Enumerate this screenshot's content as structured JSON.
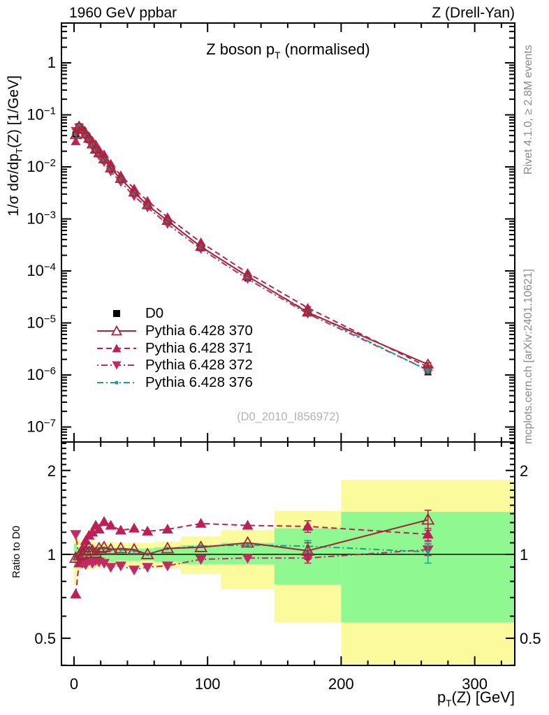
{
  "header": {
    "left": "1960 GeV ppbar",
    "right": "Z (Drell-Yan)"
  },
  "titles": {
    "main_pre": "Z boson p",
    "main_sub": "T",
    "main_post": " (normalised)",
    "y_top_pre": "1/σ dσ/dp",
    "y_top_sub": "T",
    "y_top_post": "(Z) [1/GeV]",
    "ratio_y": "Ratio to D0",
    "x_pre": "p",
    "x_sub": "T",
    "x_post": "(Z) [GeV]"
  },
  "notes": {
    "rivet": "Rivet 4.1.0, ≥ 2.8M events",
    "mcplots": "mcplots.cern.ch [arXiv:2401.10621]",
    "watermark": "(D0_2010_I856972)"
  },
  "chart_data": {
    "type": "line",
    "title": "Z boson p_T (normalised)",
    "xlabel": "p_T(Z) [GeV]",
    "ylabel_top": "1/sigma dsigma/dp_T(Z) [1/GeV]",
    "ylabel_bottom": "Ratio to D0",
    "axes": {
      "x": {
        "min": -9.4,
        "max": 330,
        "majors": [
          0,
          100,
          200,
          300
        ],
        "major_labels": [
          "0",
          "100",
          "200",
          "300"
        ],
        "minor_step": 20
      },
      "y_top": {
        "scale": "log",
        "log_min": -7.288,
        "log_max": 0.765,
        "decade_exponents": [
          0,
          -1,
          -2,
          -3,
          -4,
          -5,
          -6,
          -7
        ]
      },
      "y_ratio": {
        "scale": "log",
        "min": 0.3995,
        "max": 2.53,
        "majors": [
          0.5,
          1,
          2
        ],
        "major_labels": [
          "0.5",
          "1",
          "2"
        ],
        "minor_min": 0.4,
        "minor_max": 2.5,
        "minor_step": 0.1
      }
    },
    "bins": [
      [
        0,
        2.5
      ],
      [
        2.5,
        5
      ],
      [
        5,
        7.5
      ],
      [
        7.5,
        10
      ],
      [
        10,
        12.5
      ],
      [
        12.5,
        15
      ],
      [
        15,
        17.5
      ],
      [
        17.5,
        20
      ],
      [
        20,
        25
      ],
      [
        25,
        30
      ],
      [
        30,
        40
      ],
      [
        40,
        50
      ],
      [
        50,
        60
      ],
      [
        60,
        80
      ],
      [
        80,
        110
      ],
      [
        110,
        150
      ],
      [
        150,
        200
      ],
      [
        200,
        330
      ]
    ],
    "x": [
      1.25,
      3.75,
      6.25,
      8.75,
      11.25,
      13.75,
      16.25,
      18.75,
      22.5,
      27.5,
      35,
      45,
      55,
      70,
      95,
      130,
      175,
      265
    ],
    "d0": {
      "name": "D0",
      "color": "#000000",
      "marker": "square",
      "values": [
        0.0424,
        0.0602,
        0.0517,
        0.0411,
        0.033,
        0.0264,
        0.0214,
        0.0175,
        0.0133,
        0.00906,
        0.00563,
        0.0031,
        0.00184,
        0.00088,
        0.000275,
        7.2e-05,
        1.55e-05,
        1.2e-06
      ],
      "err_frac": [
        0.02,
        0.015,
        0.015,
        0.015,
        0.015,
        0.02,
        0.02,
        0.02,
        0.02,
        0.02,
        0.02,
        0.02,
        0.03,
        0.03,
        0.04,
        0.06,
        0.1,
        0.16
      ]
    },
    "series": [
      {
        "name": "Pythia 6.428 370",
        "color": "#a32638",
        "dash": "",
        "marker": "triangle-open",
        "ratio": [
          0.97,
          0.99,
          1.0,
          1.03,
          1.06,
          1.03,
          1.01,
          1.05,
          1.06,
          1.04,
          1.05,
          1.04,
          1.0,
          1.05,
          1.06,
          1.1,
          1.03,
          1.33
        ],
        "ratio_err": [
          0,
          0,
          0,
          0,
          0,
          0,
          0,
          0,
          0,
          0,
          0,
          0,
          0,
          0,
          0,
          0,
          0.07,
          0.11
        ]
      },
      {
        "name": "Pythia 6.428 371",
        "color": "#bd2057",
        "dash": "8 5",
        "marker": "triangle-up",
        "ratio": [
          0.72,
          0.93,
          1.05,
          1.12,
          1.17,
          1.2,
          1.27,
          1.23,
          1.31,
          1.27,
          1.22,
          1.24,
          1.21,
          1.23,
          1.29,
          1.27,
          1.26,
          1.18
        ],
        "ratio_err": [
          0,
          0,
          0,
          0,
          0,
          0,
          0,
          0,
          0,
          0,
          0,
          0,
          0,
          0,
          0,
          0,
          0.06,
          0.06
        ]
      },
      {
        "name": "Pythia 6.428 372",
        "color": "#c22a62",
        "dash": "2 4 9 4",
        "marker": "triangle-down",
        "ratio": [
          1.18,
          0.97,
          0.93,
          0.92,
          0.95,
          0.93,
          0.95,
          0.94,
          0.93,
          0.9,
          0.91,
          0.88,
          0.9,
          0.91,
          0.96,
          0.97,
          0.97,
          1.04
        ],
        "ratio_err": [
          0,
          0,
          0,
          0,
          0,
          0,
          0,
          0,
          0,
          0,
          0,
          0,
          0,
          0,
          0,
          0,
          0.04,
          0.05
        ]
      },
      {
        "name": "Pythia 6.428 376",
        "color": "#1f9e89",
        "dash": "9 4 2 4",
        "marker": "dot",
        "ratio": [
          0.98,
          1.0,
          1.02,
          1.04,
          1.06,
          1.04,
          1.02,
          1.05,
          1.05,
          1.04,
          1.04,
          1.03,
          1.0,
          1.05,
          1.07,
          1.08,
          1.07,
          1.02
        ],
        "ratio_err": [
          0,
          0,
          0,
          0,
          0,
          0,
          0,
          0,
          0,
          0,
          0,
          0,
          0,
          0,
          0,
          0,
          0.05,
          0.09
        ]
      }
    ],
    "bands": {
      "yellow_color": "#fbfb9e",
      "green_color": "#90f890",
      "yellow_lo": [
        0.78,
        0.87,
        0.89,
        0.89,
        0.88,
        0.89,
        0.89,
        0.9,
        0.9,
        0.89,
        0.9,
        0.9,
        0.9,
        0.89,
        0.85,
        0.75,
        0.57,
        0.38
      ],
      "yellow_hi": [
        1.18,
        1.13,
        1.11,
        1.11,
        1.12,
        1.11,
        1.11,
        1.1,
        1.1,
        1.11,
        1.1,
        1.1,
        1.1,
        1.11,
        1.16,
        1.22,
        1.43,
        1.85
      ],
      "green_lo": [
        0.92,
        0.94,
        0.94,
        0.94,
        0.94,
        0.94,
        0.94,
        0.95,
        0.95,
        0.94,
        0.95,
        0.95,
        0.95,
        0.94,
        0.92,
        0.92,
        0.78,
        0.57
      ],
      "green_hi": [
        1.09,
        1.06,
        1.06,
        1.06,
        1.06,
        1.06,
        1.06,
        1.05,
        1.05,
        1.06,
        1.05,
        1.05,
        1.05,
        1.06,
        1.08,
        1.1,
        1.24,
        1.42
      ]
    },
    "ratio_ref_line": 1.0
  }
}
